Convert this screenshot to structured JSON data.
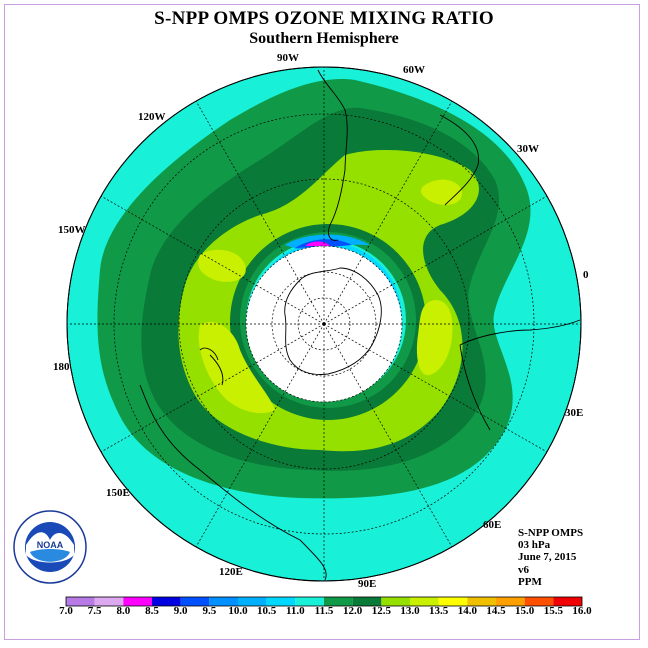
{
  "title": "S-NPP OMPS OZONE MIXING RATIO",
  "subtitle": "Southern Hemisphere",
  "longitude_labels": [
    "90W",
    "60W",
    "30W",
    "0",
    "30E",
    "60E",
    "90E",
    "120E",
    "150E",
    "180",
    "150W",
    "120W"
  ],
  "info_lines": [
    "S-NPP OMPS",
    "03 hPa",
    "June 7, 2015",
    "v6",
    "PPM"
  ],
  "logo_text": "NOAA",
  "colorbar": {
    "labels": [
      "7.0",
      "7.5",
      "8.0",
      "8.5",
      "9.0",
      "9.5",
      "10.0",
      "10.5",
      "11.0",
      "11.5",
      "12.0",
      "12.5",
      "13.0",
      "13.5",
      "14.0",
      "14.5",
      "15.0",
      "15.5",
      "16.0"
    ],
    "colors": [
      "#b77ae6",
      "#dca8f0",
      "#ff00ff",
      "#0000e0",
      "#0050ff",
      "#0090ff",
      "#00b0ff",
      "#00d8ff",
      "#18f0d8",
      "#109a48",
      "#0a7a38",
      "#96e000",
      "#c8f000",
      "#ffff00",
      "#f0c000",
      "#ffa000",
      "#ff5000",
      "#f00000",
      "#8b4513"
    ]
  },
  "map_data": {
    "projection": "south polar stereographic",
    "contour_levels": [
      10.0,
      10.5,
      11.0,
      11.5,
      12.0,
      12.5,
      13.0
    ],
    "background_level": "11.0-11.5",
    "no_data_region": "polar night (center)"
  }
}
